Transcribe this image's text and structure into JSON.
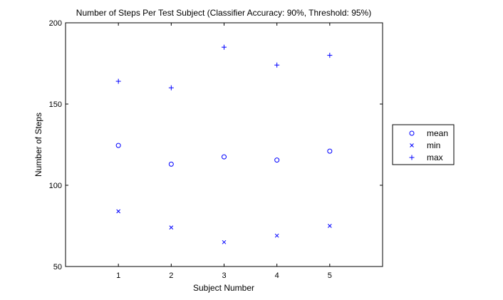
{
  "chart_data": {
    "type": "scatter",
    "title": "Number of Steps Per Test Subject (Classifier Accuracy: 90%, Threshold: 95%)",
    "xlabel": "Subject Number",
    "ylabel": "Number of Steps",
    "x": [
      1,
      2,
      3,
      4,
      5
    ],
    "xlim": [
      0,
      6
    ],
    "ylim": [
      50,
      200
    ],
    "xticks": [
      "1",
      "2",
      "3",
      "4",
      "5"
    ],
    "yticks": [
      "50",
      "100",
      "150",
      "200"
    ],
    "grid": false,
    "legend_position": "right",
    "color": "#0000ff",
    "series": [
      {
        "name": "mean",
        "marker": "circle",
        "values": [
          124.5,
          113,
          117.5,
          115.5,
          121
        ]
      },
      {
        "name": "min",
        "marker": "x",
        "values": [
          84,
          74,
          65,
          69,
          75
        ]
      },
      {
        "name": "max",
        "marker": "plus",
        "values": [
          164,
          160,
          185,
          174,
          180
        ]
      }
    ]
  }
}
